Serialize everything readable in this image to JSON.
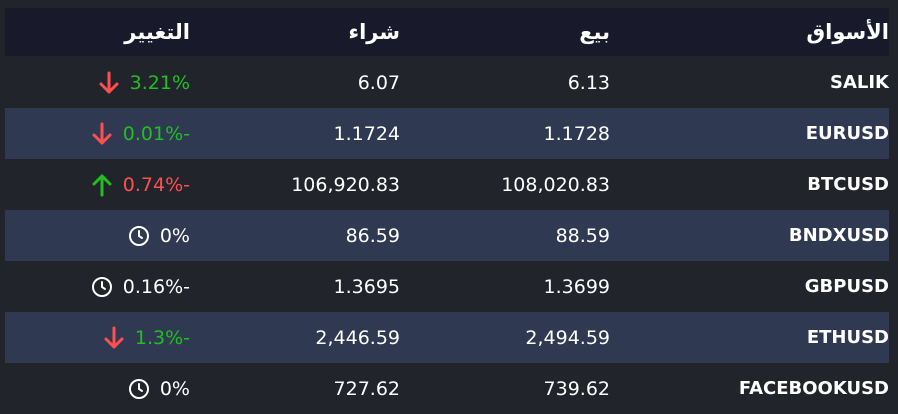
{
  "header": {
    "markets": "الأسواق",
    "sell": "بيع",
    "buy": "شراء",
    "change": "التغيير"
  },
  "colors": {
    "up": "#1fc01f",
    "down": "#ff4f4f",
    "header_bg": "#181a2c",
    "row_alt_bg": "#2f3a52",
    "bg": "#22242c"
  },
  "rows": [
    {
      "market": "SALIK",
      "sell": "6.13",
      "buy": "6.07",
      "change": "3.21%",
      "change_color": "up",
      "icon": "arrow-down-icon"
    },
    {
      "market": "EURUSD",
      "sell": "1.1728",
      "buy": "1.1724",
      "change": "0.01%-",
      "change_color": "up",
      "icon": "arrow-down-icon"
    },
    {
      "market": "BTCUSD",
      "sell": "108,020.83",
      "buy": "106,920.83",
      "change": "0.74%-",
      "change_color": "down",
      "icon": "arrow-up-icon"
    },
    {
      "market": "BNDXUSD",
      "sell": "88.59",
      "buy": "86.59",
      "change": "0%",
      "change_color": "neutral",
      "icon": "clock-icon"
    },
    {
      "market": "GBPUSD",
      "sell": "1.3699",
      "buy": "1.3695",
      "change": "0.16%-",
      "change_color": "neutral",
      "icon": "clock-icon"
    },
    {
      "market": "ETHUSD",
      "sell": "2,494.59",
      "buy": "2,446.59",
      "change": "1.3%-",
      "change_color": "up",
      "icon": "arrow-down-icon"
    },
    {
      "market": "FACEBOOKUSD",
      "sell": "739.62",
      "buy": "727.62",
      "change": "0%",
      "change_color": "neutral",
      "icon": "clock-icon"
    }
  ]
}
